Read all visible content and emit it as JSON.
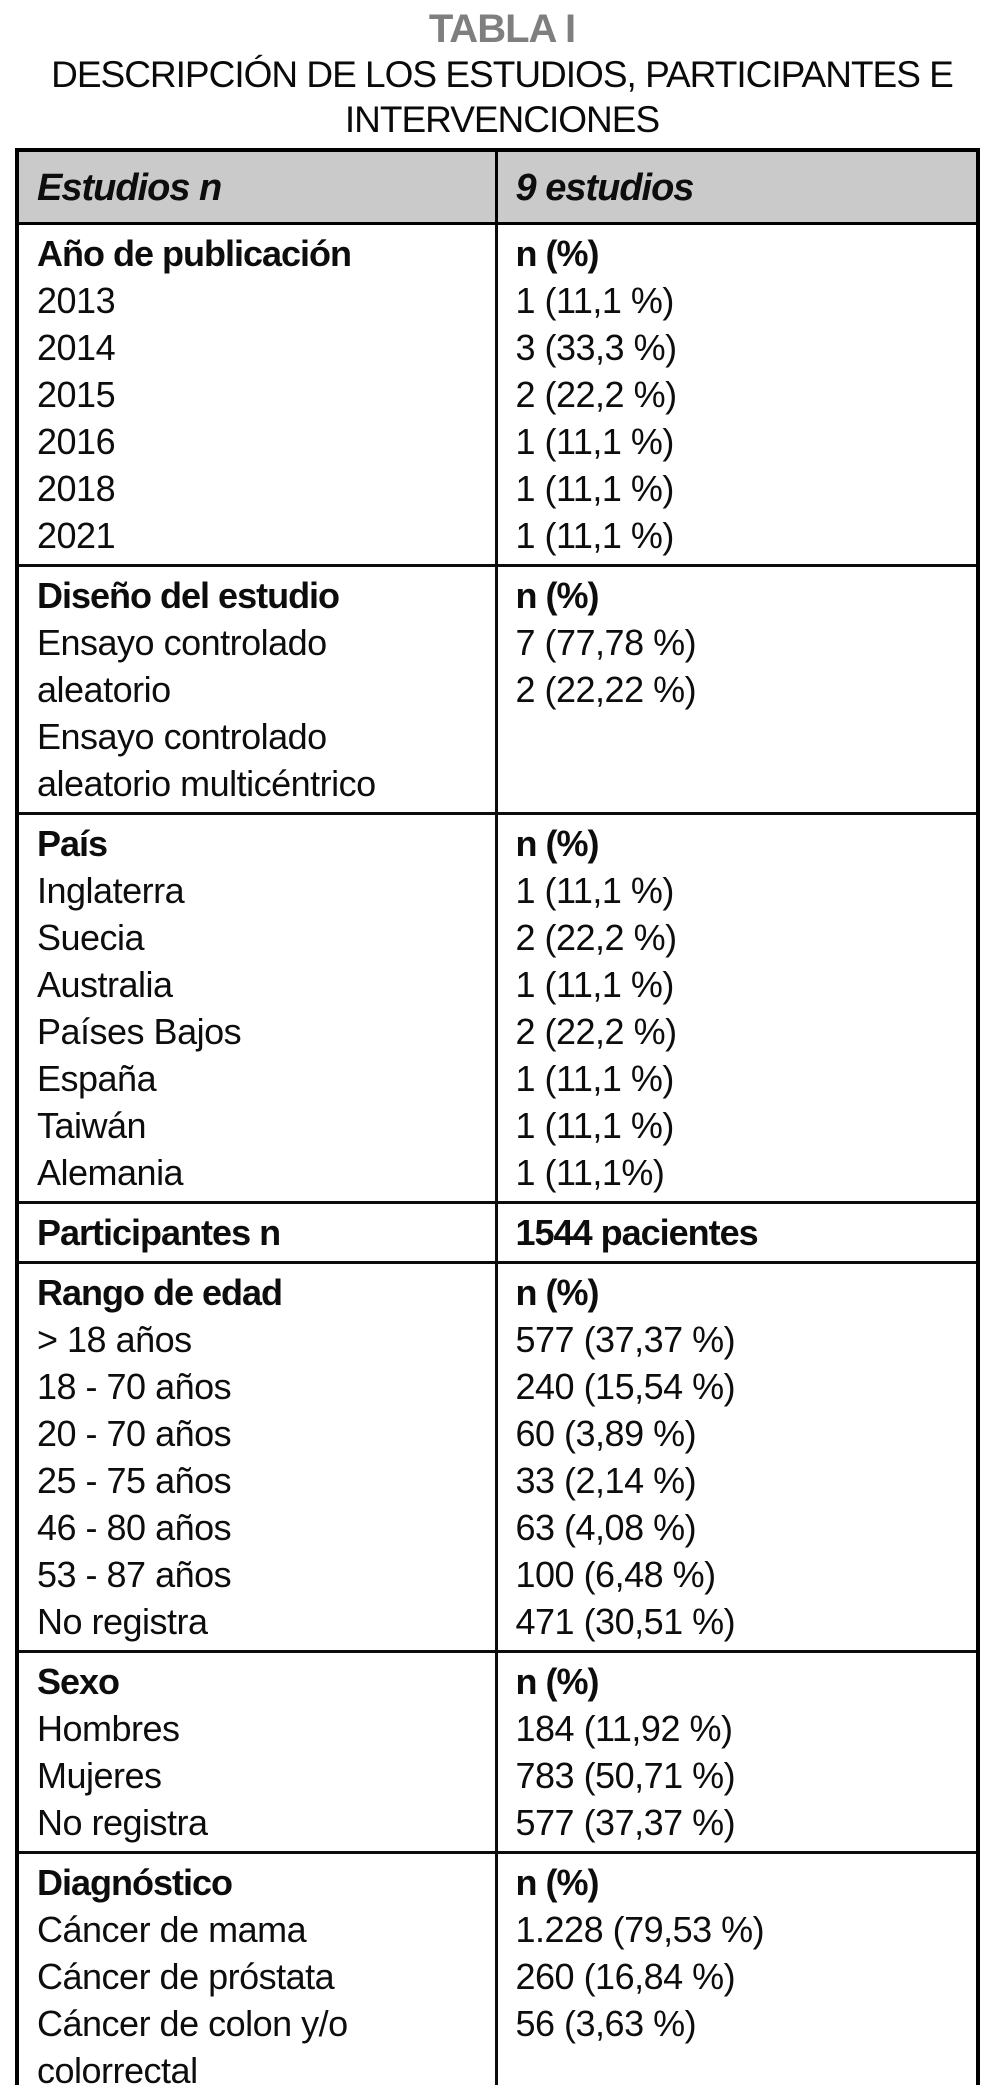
{
  "page": {
    "title": "TABLA I",
    "subtitle": "DESCRIPCIÓN DE LOS ESTUDIOS, PARTICIPANTES E INTERVENCIONES"
  },
  "colors": {
    "title_gray": "#7f7f7f",
    "header_bg": "#cacaca",
    "border_black": "#000000"
  },
  "table": {
    "header": {
      "left": "Estudios n",
      "right": "9 estudios"
    },
    "sections": [
      {
        "left": [
          {
            "t": "Año de publicación",
            "b": true
          },
          {
            "t": "2013",
            "b": false
          },
          {
            "t": "2014",
            "b": false
          },
          {
            "t": "2015",
            "b": false
          },
          {
            "t": "2016",
            "b": false
          },
          {
            "t": "2018",
            "b": false
          },
          {
            "t": "2021",
            "b": false
          }
        ],
        "right": [
          {
            "t": "n (%)",
            "b": true
          },
          {
            "t": "1 (11,1 %)",
            "b": false
          },
          {
            "t": "3 (33,3 %)",
            "b": false
          },
          {
            "t": "2 (22,2 %)",
            "b": false
          },
          {
            "t": "1 (11,1 %)",
            "b": false
          },
          {
            "t": "1 (11,1 %)",
            "b": false
          },
          {
            "t": "1 (11,1 %)",
            "b": false
          }
        ]
      },
      {
        "left": [
          {
            "t": "Diseño del estudio",
            "b": true
          },
          {
            "t": "Ensayo controlado",
            "b": false
          },
          {
            "t": "aleatorio",
            "b": false
          },
          {
            "t": "Ensayo controlado",
            "b": false
          },
          {
            "t": "aleatorio multicéntrico",
            "b": false
          }
        ],
        "right": [
          {
            "t": "n (%)",
            "b": true
          },
          {
            "t": "7 (77,78 %)",
            "b": false
          },
          {
            "t": "2 (22,22 %)",
            "b": false
          }
        ]
      },
      {
        "left": [
          {
            "t": "País",
            "b": true
          },
          {
            "t": "Inglaterra",
            "b": false
          },
          {
            "t": "Suecia",
            "b": false
          },
          {
            "t": "Australia",
            "b": false
          },
          {
            "t": "Países Bajos",
            "b": false
          },
          {
            "t": "España",
            "b": false
          },
          {
            "t": "Taiwán",
            "b": false
          },
          {
            "t": "Alemania",
            "b": false
          }
        ],
        "right": [
          {
            "t": "n (%)",
            "b": true
          },
          {
            "t": "1 (11,1 %)",
            "b": false
          },
          {
            "t": "2 (22,2 %)",
            "b": false
          },
          {
            "t": "1 (11,1 %)",
            "b": false
          },
          {
            "t": "2 (22,2 %)",
            "b": false
          },
          {
            "t": "1 (11,1 %)",
            "b": false
          },
          {
            "t": "1 (11,1 %)",
            "b": false
          },
          {
            "t": "1 (11,1%)",
            "b": false
          }
        ]
      },
      {
        "left": [
          {
            "t": "Participantes n",
            "b": true
          }
        ],
        "right": [
          {
            "t": "1544 pacientes",
            "b": true
          }
        ]
      },
      {
        "left": [
          {
            "t": "Rango de edad",
            "b": true
          },
          {
            "t": "> 18 años",
            "b": false
          },
          {
            "t": "18 - 70 años",
            "b": false
          },
          {
            "t": "20 - 70 años",
            "b": false
          },
          {
            "t": "25 - 75 años",
            "b": false
          },
          {
            "t": "46 - 80 años",
            "b": false
          },
          {
            "t": "53 - 87 años",
            "b": false
          },
          {
            "t": "No registra",
            "b": false
          }
        ],
        "right": [
          {
            "t": "n (%)",
            "b": true
          },
          {
            "t": "577 (37,37 %)",
            "b": false
          },
          {
            "t": "240 (15,54 %)",
            "b": false
          },
          {
            "t": "60 (3,89 %)",
            "b": false
          },
          {
            "t": "33 (2,14 %)",
            "b": false
          },
          {
            "t": "63 (4,08 %)",
            "b": false
          },
          {
            "t": "100 (6,48 %)",
            "b": false
          },
          {
            "t": "471 (30,51 %)",
            "b": false
          }
        ]
      },
      {
        "left": [
          {
            "t": "Sexo",
            "b": true
          },
          {
            "t": "Hombres",
            "b": false
          },
          {
            "t": "Mujeres",
            "b": false
          },
          {
            "t": "No registra",
            "b": false
          }
        ],
        "right": [
          {
            "t": "n (%)",
            "b": true
          },
          {
            "t": "184 (11,92 %)",
            "b": false
          },
          {
            "t": "783 (50,71 %)",
            "b": false
          },
          {
            "t": "577 (37,37 %)",
            "b": false
          }
        ]
      },
      {
        "left": [
          {
            "t": "Diagnóstico",
            "b": true
          },
          {
            "t": "Cáncer de mama",
            "b": false
          },
          {
            "t": "Cáncer de próstata",
            "b": false
          },
          {
            "t": "Cáncer de colon y/o",
            "b": false
          },
          {
            "t": "colorrectal",
            "b": false
          }
        ],
        "right": [
          {
            "t": "n (%)",
            "b": true
          },
          {
            "t": "1.228 (79,53 %)",
            "b": false
          },
          {
            "t": "260 (16,84 %)",
            "b": false
          },
          {
            "t": "56 (3,63 %)",
            "b": false
          }
        ]
      }
    ]
  }
}
